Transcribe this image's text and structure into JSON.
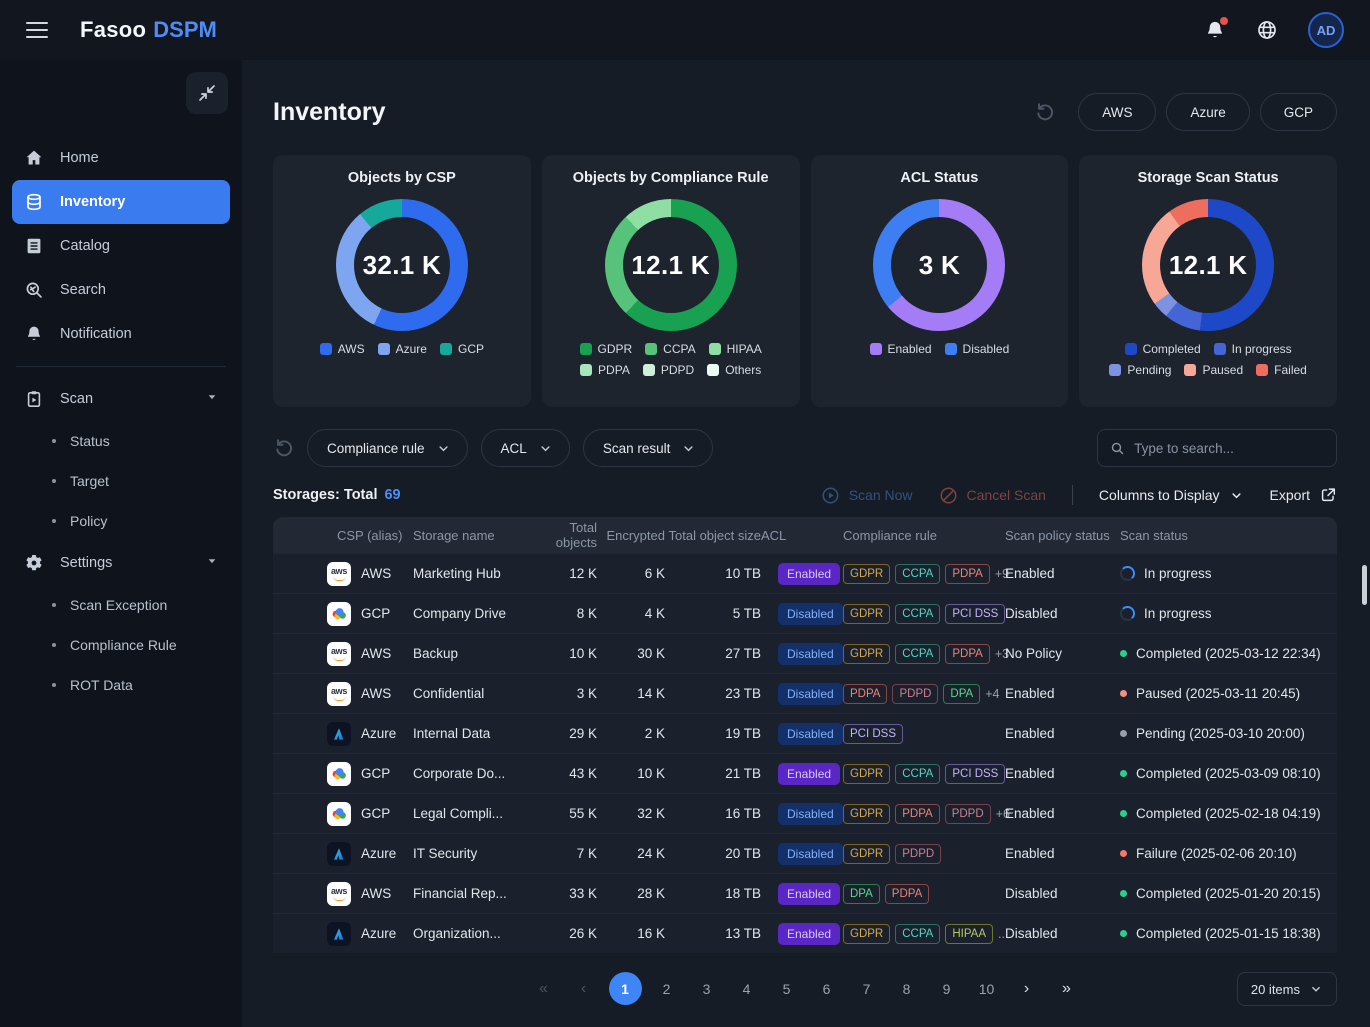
{
  "topbar": {
    "brand_name": "Fasoo",
    "brand_product": "DSPM",
    "avatar_initials": "AD"
  },
  "sidebar": {
    "items": [
      {
        "label": "Home",
        "icon": "home"
      },
      {
        "label": "Inventory",
        "icon": "inventory",
        "active": true
      },
      {
        "label": "Catalog",
        "icon": "catalog"
      },
      {
        "label": "Search",
        "icon": "search"
      },
      {
        "label": "Notification",
        "icon": "notification"
      },
      {
        "divider": true
      },
      {
        "label": "Scan",
        "icon": "scan",
        "expandable": true
      },
      {
        "label": "Status",
        "sub": true
      },
      {
        "label": "Target",
        "sub": true
      },
      {
        "label": "Policy",
        "sub": true
      },
      {
        "label": "Settings",
        "icon": "settings",
        "expandable": true
      },
      {
        "label": "Scan Exception",
        "sub": true
      },
      {
        "label": "Compliance Rule",
        "sub": true
      },
      {
        "label": "ROT Data",
        "sub": true
      }
    ]
  },
  "page": {
    "title": "Inventory",
    "csp_filters": [
      "AWS",
      "Azure",
      "GCP"
    ]
  },
  "charts": [
    {
      "type": "donut",
      "title": "Objects by CSP",
      "total": "32.1 K",
      "segments": [
        {
          "label": "AWS",
          "color": "#2e6bee",
          "pct": 57
        },
        {
          "label": "Azure",
          "color": "#7ea6f0",
          "pct": 32
        },
        {
          "label": "GCP",
          "color": "#16a89b",
          "pct": 11
        }
      ]
    },
    {
      "type": "donut",
      "title": "Objects by Compliance Rule",
      "total": "12.1 K",
      "segments": [
        {
          "label": "GDPR",
          "color": "#17a150",
          "pct": 62
        },
        {
          "label": "CCPA",
          "color": "#56c27a",
          "pct": 26
        },
        {
          "label": "HIPAA",
          "color": "#8fdfa4",
          "pct": 12
        },
        {
          "label": "PDPA",
          "color": "#a8e4bc",
          "pct": 0
        },
        {
          "label": "PDPD",
          "color": "#cdf0d9",
          "pct": 0
        },
        {
          "label": "Others",
          "color": "#ecfaf1",
          "pct": 0
        }
      ]
    },
    {
      "type": "donut",
      "title": "ACL Status",
      "total": "3 K",
      "segments": [
        {
          "label": "Enabled",
          "color": "#a47cf5",
          "pct": 64
        },
        {
          "label": "Disabled",
          "color": "#3d7ef2",
          "pct": 36
        }
      ]
    },
    {
      "type": "donut",
      "title": "Storage Scan Status",
      "total": "12.1 K",
      "segments": [
        {
          "label": "Completed",
          "color": "#1d49c9",
          "pct": 52
        },
        {
          "label": "In progress",
          "color": "#4565d6",
          "pct": 9
        },
        {
          "label": "Pending",
          "color": "#7d93e2",
          "pct": 4
        },
        {
          "label": "Paused",
          "color": "#f7a795",
          "pct": 25
        },
        {
          "label": "Failed",
          "color": "#ed6e5e",
          "pct": 10
        }
      ]
    }
  ],
  "filters": {
    "dropdowns": [
      "Compliance rule",
      "ACL",
      "Scan result"
    ],
    "search_placeholder": "Type to search..."
  },
  "toolbar": {
    "storages_label": "Storages: Total",
    "total_count": "69",
    "scan_now": "Scan Now",
    "cancel_scan": "Cancel Scan",
    "columns_to_display": "Columns to Display",
    "export_label": "Export"
  },
  "table": {
    "columns": [
      {
        "label": "CSP (alias)",
        "align": "l"
      },
      {
        "label": "Storage name",
        "align": "l"
      },
      {
        "label": "Total objects",
        "align": "r"
      },
      {
        "label": "Encrypted",
        "align": "r"
      },
      {
        "label": "Total object size",
        "align": "r"
      },
      {
        "label": "ACL",
        "align": "l"
      },
      {
        "label": "Compliance rule",
        "align": "l"
      },
      {
        "label": "Scan policy status",
        "align": "l"
      },
      {
        "label": "Scan status",
        "align": "l"
      }
    ],
    "rows": [
      {
        "csp": "AWS",
        "icon": "aws",
        "name": "Marketing Hub",
        "objects": "12 K",
        "encrypted": "6 K",
        "size": "10 TB",
        "acl": "Enabled",
        "rules": [
          "GDPR",
          "CCPA",
          "PDPA"
        ],
        "extra": "+9",
        "policy": "Enabled",
        "scan": {
          "kind": "progress",
          "text": "In progress"
        }
      },
      {
        "csp": "GCP",
        "icon": "gcp",
        "name": "Company Drive",
        "objects": "8 K",
        "encrypted": "4 K",
        "size": "5 TB",
        "acl": "Disabled",
        "rules": [
          "GDPR",
          "CCPA",
          "PCI DSS"
        ],
        "extra": "...",
        "policy": "Disabled",
        "scan": {
          "kind": "progress",
          "text": "In progress"
        }
      },
      {
        "csp": "AWS",
        "icon": "aws",
        "name": "Backup",
        "objects": "10 K",
        "encrypted": "30 K",
        "size": "27 TB",
        "acl": "Disabled",
        "rules": [
          "GDPR",
          "CCPA",
          "PDPA"
        ],
        "extra": "+3",
        "policy": "No Policy",
        "scan": {
          "kind": "dot",
          "dot": "completed",
          "text": "Completed (2025-03-12 22:34)"
        }
      },
      {
        "csp": "AWS",
        "icon": "aws",
        "name": "Confidential",
        "objects": "3 K",
        "encrypted": "14 K",
        "size": "23 TB",
        "acl": "Disabled",
        "rules": [
          "PDPA",
          "PDPD",
          "DPA"
        ],
        "extra": "+4",
        "policy": "Enabled",
        "scan": {
          "kind": "dot",
          "dot": "paused",
          "text": "Paused (2025-03-11 20:45)"
        }
      },
      {
        "csp": "Azure",
        "icon": "azure",
        "name": "Internal Data",
        "objects": "29 K",
        "encrypted": "2 K",
        "size": "19 TB",
        "acl": "Disabled",
        "rules": [
          "PCI DSS"
        ],
        "extra": "",
        "policy": "Enabled",
        "scan": {
          "kind": "dot",
          "dot": "pending",
          "text": "Pending (2025-03-10 20:00)"
        }
      },
      {
        "csp": "GCP",
        "icon": "gcp",
        "name": "Corporate Do...",
        "objects": "43 K",
        "encrypted": "10 K",
        "size": "21 TB",
        "acl": "Enabled",
        "rules": [
          "GDPR",
          "CCPA",
          "PCI DSS"
        ],
        "extra": "...",
        "policy": "Enabled",
        "scan": {
          "kind": "dot",
          "dot": "completed",
          "text": "Completed (2025-03-09 08:10)"
        }
      },
      {
        "csp": "GCP",
        "icon": "gcp",
        "name": "Legal Compli...",
        "objects": "55 K",
        "encrypted": "32 K",
        "size": "16 TB",
        "acl": "Disabled",
        "rules": [
          "GDPR",
          "PDPA",
          "PDPD"
        ],
        "extra": "+6",
        "policy": "Enabled",
        "scan": {
          "kind": "dot",
          "dot": "completed",
          "text": "Completed (2025-02-18 04:19)"
        }
      },
      {
        "csp": "Azure",
        "icon": "azure",
        "name": "IT Security",
        "objects": "7 K",
        "encrypted": "24 K",
        "size": "20 TB",
        "acl": "Disabled",
        "rules": [
          "GDPR",
          "PDPD"
        ],
        "extra": "",
        "policy": "Enabled",
        "scan": {
          "kind": "dot",
          "dot": "failure",
          "text": "Failure (2025-02-06 20:10)"
        }
      },
      {
        "csp": "AWS",
        "icon": "aws",
        "name": "Financial Rep...",
        "objects": "33 K",
        "encrypted": "28 K",
        "size": "18 TB",
        "acl": "Enabled",
        "rules": [
          "DPA",
          "PDPA"
        ],
        "extra": "",
        "policy": "Disabled",
        "scan": {
          "kind": "dot",
          "dot": "completed",
          "text": "Completed (2025-01-20 20:15)"
        }
      },
      {
        "csp": "Azure",
        "icon": "azure",
        "name": "Organization...",
        "objects": "26 K",
        "encrypted": "16 K",
        "size": "13 TB",
        "acl": "Enabled",
        "rules": [
          "GDPR",
          "CCPA",
          "HIPAA"
        ],
        "extra": "...",
        "policy": "Disabled",
        "scan": {
          "kind": "dot",
          "dot": "completed",
          "text": "Completed (2025-01-15 18:38)"
        }
      }
    ]
  },
  "pagination": {
    "first": "«",
    "prev": "‹",
    "next": "›",
    "last": "»",
    "pages": [
      "1",
      "2",
      "3",
      "4",
      "5",
      "6",
      "7",
      "8",
      "9",
      "10"
    ],
    "active": "1",
    "page_size": "20 items"
  }
}
